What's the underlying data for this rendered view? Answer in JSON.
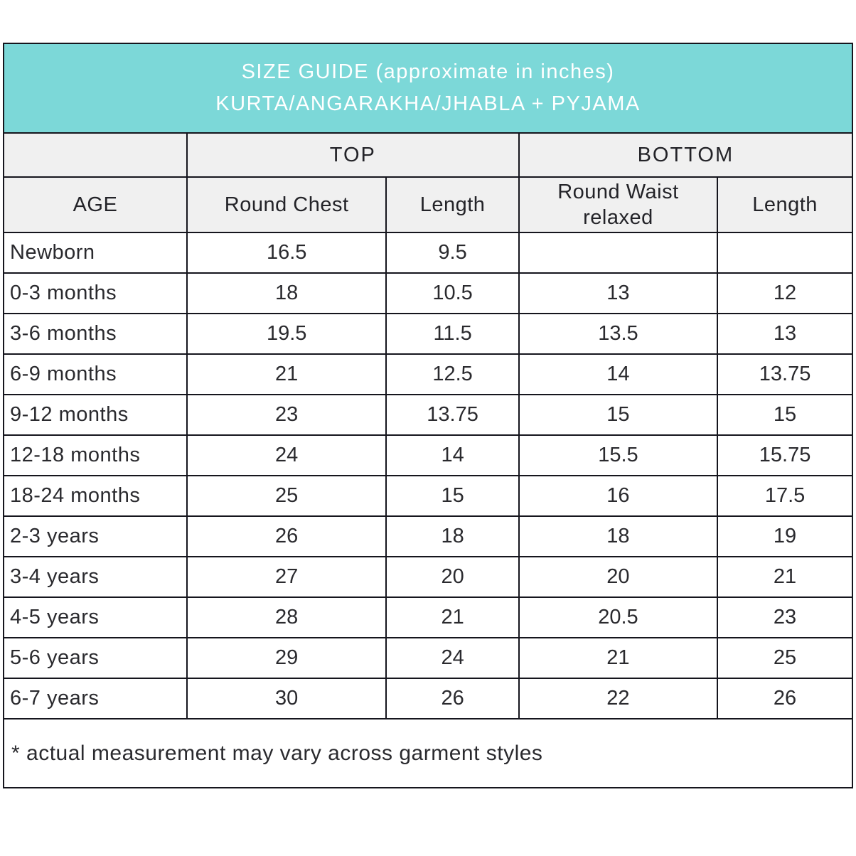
{
  "banner": {
    "line1": "SIZE GUIDE (approximate in inches)",
    "line2": "KURTA/ANGARAKHA/JHABLA + PYJAMA"
  },
  "colors": {
    "banner_bg": "#7cd8d8",
    "banner_text": "#ffffff",
    "header_bg": "#f0f0f0",
    "border": "#15151d",
    "text": "#2a2a2e"
  },
  "table": {
    "group_headers": {
      "top": "TOP",
      "bottom": "BOTTOM"
    },
    "columns": [
      "AGE",
      "Round Chest",
      "Length",
      "Round Waist relaxed",
      "Length"
    ],
    "rows": [
      {
        "age": "Newborn",
        "round_chest": "16.5",
        "top_length": "9.5",
        "round_waist": "",
        "bottom_length": ""
      },
      {
        "age": "0-3 months",
        "round_chest": "18",
        "top_length": "10.5",
        "round_waist": "13",
        "bottom_length": "12"
      },
      {
        "age": "3-6 months",
        "round_chest": "19.5",
        "top_length": "11.5",
        "round_waist": "13.5",
        "bottom_length": "13"
      },
      {
        "age": "6-9 months",
        "round_chest": "21",
        "top_length": "12.5",
        "round_waist": "14",
        "bottom_length": "13.75"
      },
      {
        "age": "9-12 months",
        "round_chest": "23",
        "top_length": "13.75",
        "round_waist": "15",
        "bottom_length": "15"
      },
      {
        "age": "12-18 months",
        "round_chest": "24",
        "top_length": "14",
        "round_waist": "15.5",
        "bottom_length": "15.75"
      },
      {
        "age": "18-24 months",
        "round_chest": "25",
        "top_length": "15",
        "round_waist": "16",
        "bottom_length": "17.5"
      },
      {
        "age": "2-3 years",
        "round_chest": "26",
        "top_length": "18",
        "round_waist": "18",
        "bottom_length": "19"
      },
      {
        "age": "3-4 years",
        "round_chest": "27",
        "top_length": "20",
        "round_waist": "20",
        "bottom_length": "21"
      },
      {
        "age": "4-5 years",
        "round_chest": "28",
        "top_length": "21",
        "round_waist": "20.5",
        "bottom_length": "23"
      },
      {
        "age": "5-6 years",
        "round_chest": "29",
        "top_length": "24",
        "round_waist": "21",
        "bottom_length": "25"
      },
      {
        "age": "6-7 years",
        "round_chest": "30",
        "top_length": "26",
        "round_waist": "22",
        "bottom_length": "26"
      }
    ],
    "footnote": "* actual measurement may vary across garment styles"
  },
  "chart_data": {
    "type": "table",
    "title": "SIZE GUIDE (approximate in inches) KURTA/ANGARAKHA/JHABLA + PYJAMA",
    "column_groups": [
      {
        "label": "",
        "span": 1
      },
      {
        "label": "TOP",
        "span": 2
      },
      {
        "label": "BOTTOM",
        "span": 2
      }
    ],
    "columns": [
      "AGE",
      "Round Chest",
      "Length",
      "Round Waist relaxed",
      "Length"
    ],
    "rows": [
      [
        "Newborn",
        16.5,
        9.5,
        null,
        null
      ],
      [
        "0-3 months",
        18,
        10.5,
        13,
        12
      ],
      [
        "3-6 months",
        19.5,
        11.5,
        13.5,
        13
      ],
      [
        "6-9 months",
        21,
        12.5,
        14,
        13.75
      ],
      [
        "9-12 months",
        23,
        13.75,
        15,
        15
      ],
      [
        "12-18 months",
        24,
        14,
        15.5,
        15.75
      ],
      [
        "18-24 months",
        25,
        15,
        16,
        17.5
      ],
      [
        "2-3 years",
        26,
        18,
        18,
        19
      ],
      [
        "3-4 years",
        27,
        20,
        20,
        21
      ],
      [
        "4-5 years",
        28,
        21,
        20.5,
        23
      ],
      [
        "5-6 years",
        29,
        24,
        21,
        25
      ],
      [
        "6-7 years",
        30,
        26,
        22,
        26
      ]
    ],
    "annotations": [
      "* actual measurement may vary across garment styles"
    ]
  }
}
